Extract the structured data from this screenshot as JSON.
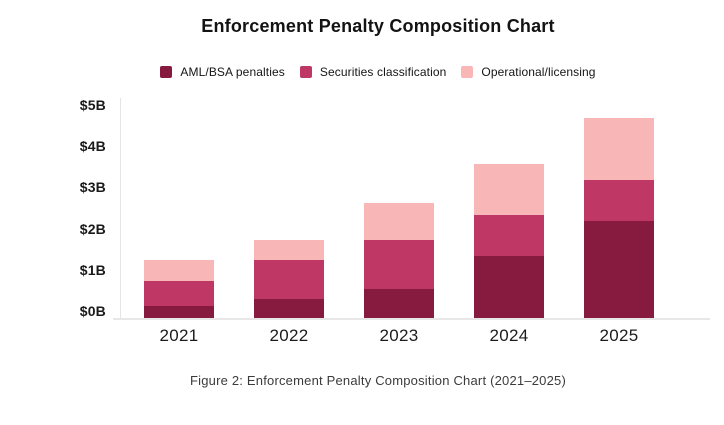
{
  "chart_data": {
    "type": "bar",
    "stacked": true,
    "title": "Enforcement Penalty Composition Chart",
    "categories": [
      "2021",
      "2022",
      "2023",
      "2024",
      "2025"
    ],
    "series": [
      {
        "name": "AML/BSA penalties",
        "color": "#871A3F",
        "values": [
          0.3,
          0.45,
          0.7,
          1.5,
          2.35
        ]
      },
      {
        "name": "Securities classification",
        "color": "#BE3765",
        "values": [
          0.6,
          0.95,
          1.2,
          1.0,
          1.0
        ]
      },
      {
        "name": "Operational/licensing",
        "color": "#F8B7B6",
        "values": [
          0.5,
          0.5,
          0.9,
          1.25,
          1.5
        ]
      }
    ],
    "y_axis": {
      "ticks": [
        "$0B",
        "$1B",
        "$2B",
        "$3B",
        "$4B",
        "$5B"
      ],
      "min": 0,
      "max": 5,
      "unit": "billions USD"
    },
    "xlabel": "",
    "ylabel": "",
    "legend_position": "top",
    "grid": false,
    "axis_color": "#E5E5E5"
  },
  "caption": "Figure 2: Enforcement Penalty Composition Chart (2021–2025)"
}
